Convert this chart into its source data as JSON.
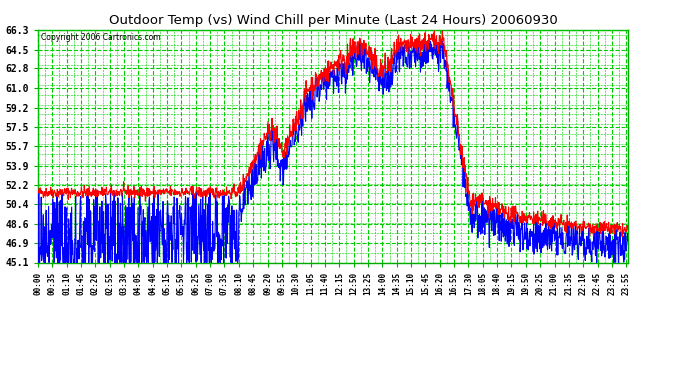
{
  "title": "Outdoor Temp (vs) Wind Chill per Minute (Last 24 Hours) 20060930",
  "copyright": "Copyright 2006 Cartronics.com",
  "yticks": [
    45.1,
    46.9,
    48.6,
    50.4,
    52.2,
    53.9,
    55.7,
    57.5,
    59.2,
    61.0,
    62.8,
    64.5,
    66.3
  ],
  "ymin": 45.1,
  "ymax": 66.3,
  "xmin": 0,
  "xmax": 1439,
  "xtick_minutes": [
    0,
    35,
    70,
    105,
    140,
    175,
    210,
    245,
    280,
    315,
    350,
    385,
    420,
    455,
    490,
    525,
    560,
    595,
    630,
    665,
    700,
    735,
    770,
    805,
    840,
    875,
    910,
    945,
    980,
    1015,
    1050,
    1085,
    1120,
    1155,
    1190,
    1225,
    1260,
    1295,
    1330,
    1365,
    1400,
    1435
  ],
  "xtick_labels": [
    "00:00",
    "00:35",
    "01:10",
    "01:45",
    "02:20",
    "02:55",
    "03:30",
    "04:05",
    "04:40",
    "05:15",
    "05:50",
    "06:25",
    "07:00",
    "07:35",
    "08:10",
    "08:45",
    "09:20",
    "09:55",
    "10:30",
    "11:05",
    "11:40",
    "12:15",
    "12:50",
    "13:25",
    "14:00",
    "14:35",
    "15:10",
    "15:45",
    "16:20",
    "16:55",
    "17:30",
    "18:05",
    "18:40",
    "19:15",
    "19:50",
    "20:25",
    "21:00",
    "21:35",
    "22:10",
    "22:45",
    "23:20",
    "23:55"
  ],
  "line_red_color": "#ff0000",
  "line_blue_color": "#0000ff",
  "bg_color": "#ffffff",
  "outer_bg": "#ffffff",
  "grid_color": "#00cc00",
  "title_color": "#000000"
}
